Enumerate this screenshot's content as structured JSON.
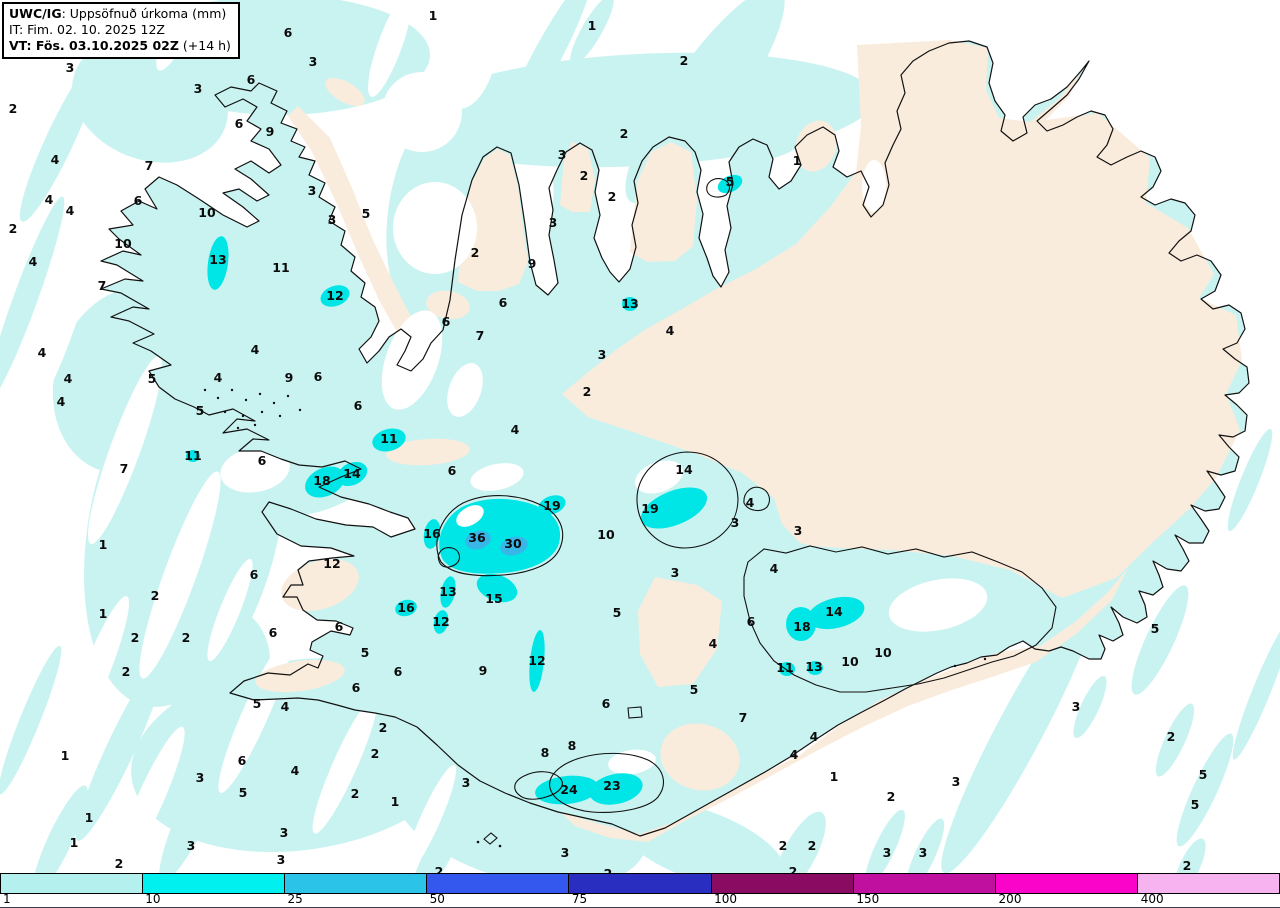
{
  "title_box": {
    "model": "UWC/IG",
    "param": ": Uppsöfnuð úrkoma (mm)",
    "init_line": "IT: Fim. 02. 10. 2025 12Z",
    "valid_bold": "VT: Fös. 03.10.2025 02Z",
    "valid_suffix": " (+14 h)"
  },
  "legend": {
    "ticks": [
      "1",
      "10",
      "25",
      "50",
      "75",
      "100",
      "150",
      "200",
      "400"
    ],
    "colors": [
      "#b4f0ed",
      "#00efef",
      "#2cc3e9",
      "#3458ee",
      "#2a2ec0",
      "#8a0c62",
      "#bf10a0",
      "#fa04ca",
      "#f7b3ef"
    ]
  },
  "map": {
    "colors": {
      "sea": "#ffffff",
      "precip_light": "#c9f3f1",
      "precip_bright": "#00e5e5",
      "precip_mid": "#38b6e8",
      "land_dry": "#faecdc",
      "coastline": "#111111"
    },
    "values": [
      [
        433,
        16,
        "1"
      ],
      [
        288,
        33,
        "6"
      ],
      [
        592,
        26,
        "1"
      ],
      [
        684,
        61,
        "2"
      ],
      [
        313,
        62,
        "3"
      ],
      [
        70,
        68,
        "3"
      ],
      [
        251,
        80,
        "6"
      ],
      [
        198,
        89,
        "3"
      ],
      [
        13,
        109,
        "2"
      ],
      [
        239,
        124,
        "6"
      ],
      [
        270,
        132,
        "9"
      ],
      [
        624,
        134,
        "2"
      ],
      [
        562,
        155,
        "3"
      ],
      [
        55,
        160,
        "4"
      ],
      [
        149,
        166,
        "7"
      ],
      [
        797,
        161,
        "1"
      ],
      [
        584,
        176,
        "2"
      ],
      [
        730,
        182,
        "5"
      ],
      [
        612,
        197,
        "2"
      ],
      [
        49,
        200,
        "4"
      ],
      [
        138,
        201,
        "6"
      ],
      [
        70,
        211,
        "4"
      ],
      [
        207,
        213,
        "10"
      ],
      [
        312,
        191,
        "3"
      ],
      [
        332,
        220,
        "3"
      ],
      [
        366,
        214,
        "5"
      ],
      [
        13,
        229,
        "2"
      ],
      [
        123,
        244,
        "10"
      ],
      [
        553,
        223,
        "3"
      ],
      [
        475,
        253,
        "2"
      ],
      [
        218,
        260,
        "13"
      ],
      [
        281,
        268,
        "11"
      ],
      [
        532,
        264,
        "9"
      ],
      [
        33,
        262,
        "4"
      ],
      [
        102,
        286,
        "7"
      ],
      [
        335,
        296,
        "12"
      ],
      [
        503,
        303,
        "6"
      ],
      [
        446,
        322,
        "6"
      ],
      [
        480,
        336,
        "7"
      ],
      [
        630,
        304,
        "13"
      ],
      [
        670,
        331,
        "4"
      ],
      [
        602,
        355,
        "3"
      ],
      [
        587,
        392,
        "2"
      ],
      [
        42,
        353,
        "4"
      ],
      [
        255,
        350,
        "4"
      ],
      [
        68,
        379,
        "4"
      ],
      [
        61,
        402,
        "4"
      ],
      [
        152,
        379,
        "5"
      ],
      [
        218,
        378,
        "4"
      ],
      [
        289,
        378,
        "9"
      ],
      [
        318,
        377,
        "6"
      ],
      [
        358,
        406,
        "6"
      ],
      [
        200,
        411,
        "5"
      ],
      [
        515,
        430,
        "4"
      ],
      [
        193,
        456,
        "11"
      ],
      [
        124,
        469,
        "7"
      ],
      [
        262,
        461,
        "6"
      ],
      [
        389,
        439,
        "11"
      ],
      [
        322,
        481,
        "18"
      ],
      [
        352,
        474,
        "14"
      ],
      [
        452,
        471,
        "6"
      ],
      [
        684,
        470,
        "14"
      ],
      [
        552,
        506,
        "19"
      ],
      [
        650,
        509,
        "19"
      ],
      [
        750,
        503,
        "4"
      ],
      [
        735,
        523,
        "3"
      ],
      [
        798,
        531,
        "3"
      ],
      [
        432,
        534,
        "16"
      ],
      [
        477,
        538,
        "36"
      ],
      [
        513,
        544,
        "30"
      ],
      [
        606,
        535,
        "10"
      ],
      [
        103,
        545,
        "1"
      ],
      [
        332,
        564,
        "12"
      ],
      [
        254,
        575,
        "6"
      ],
      [
        675,
        573,
        "3"
      ],
      [
        774,
        569,
        "4"
      ],
      [
        155,
        596,
        "2"
      ],
      [
        103,
        614,
        "1"
      ],
      [
        135,
        638,
        "2"
      ],
      [
        186,
        638,
        "2"
      ],
      [
        126,
        672,
        "2"
      ],
      [
        273,
        633,
        "6"
      ],
      [
        339,
        627,
        "6"
      ],
      [
        365,
        653,
        "5"
      ],
      [
        398,
        672,
        "6"
      ],
      [
        356,
        688,
        "6"
      ],
      [
        406,
        608,
        "16"
      ],
      [
        448,
        592,
        "13"
      ],
      [
        494,
        599,
        "15"
      ],
      [
        441,
        622,
        "12"
      ],
      [
        617,
        613,
        "5"
      ],
      [
        257,
        704,
        "5"
      ],
      [
        285,
        707,
        "4"
      ],
      [
        383,
        728,
        "2"
      ],
      [
        375,
        754,
        "2"
      ],
      [
        65,
        756,
        "1"
      ],
      [
        242,
        761,
        "6"
      ],
      [
        200,
        778,
        "3"
      ],
      [
        295,
        771,
        "4"
      ],
      [
        243,
        793,
        "5"
      ],
      [
        355,
        794,
        "2"
      ],
      [
        395,
        802,
        "1"
      ],
      [
        89,
        818,
        "1"
      ],
      [
        74,
        843,
        "1"
      ],
      [
        191,
        846,
        "3"
      ],
      [
        284,
        833,
        "3"
      ],
      [
        281,
        860,
        "3"
      ],
      [
        119,
        864,
        "2"
      ],
      [
        751,
        622,
        "6"
      ],
      [
        834,
        612,
        "14"
      ],
      [
        802,
        627,
        "18"
      ],
      [
        713,
        644,
        "4"
      ],
      [
        537,
        661,
        "12"
      ],
      [
        483,
        671,
        "9"
      ],
      [
        785,
        668,
        "11"
      ],
      [
        814,
        667,
        "13"
      ],
      [
        850,
        662,
        "10"
      ],
      [
        883,
        653,
        "10"
      ],
      [
        694,
        690,
        "5"
      ],
      [
        606,
        704,
        "6"
      ],
      [
        743,
        718,
        "7"
      ],
      [
        545,
        753,
        "8"
      ],
      [
        572,
        746,
        "8"
      ],
      [
        814,
        737,
        "4"
      ],
      [
        794,
        755,
        "4"
      ],
      [
        834,
        777,
        "1"
      ],
      [
        466,
        783,
        "3"
      ],
      [
        569,
        790,
        "24"
      ],
      [
        612,
        786,
        "23"
      ],
      [
        812,
        846,
        "2"
      ],
      [
        565,
        853,
        "3"
      ],
      [
        1155,
        629,
        "5"
      ],
      [
        1076,
        707,
        "3"
      ],
      [
        1171,
        737,
        "2"
      ],
      [
        1203,
        775,
        "5"
      ],
      [
        1195,
        805,
        "5"
      ],
      [
        891,
        797,
        "2"
      ],
      [
        956,
        782,
        "3"
      ],
      [
        923,
        853,
        "3"
      ],
      [
        1187,
        866,
        "2"
      ],
      [
        439,
        872,
        "2"
      ],
      [
        608,
        874,
        "2"
      ],
      [
        783,
        846,
        "2"
      ],
      [
        793,
        872,
        "2"
      ],
      [
        887,
        853,
        "3"
      ]
    ]
  }
}
